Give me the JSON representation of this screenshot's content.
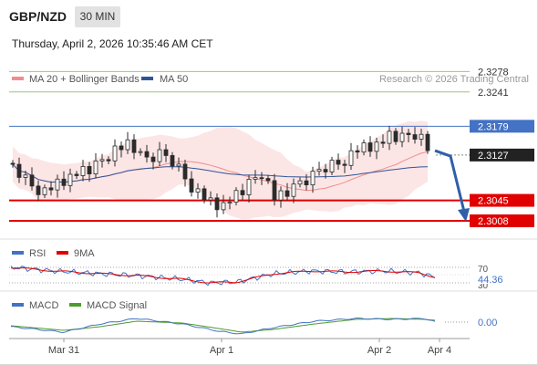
{
  "header": {
    "symbol": "GBP/NZD",
    "timeframe": "30 MIN",
    "datetime": "Thursday, April 2, 2026 10:35:46 AM CET"
  },
  "legend": {
    "ma20": "MA 20 + Bollinger Bands",
    "ma50": "MA 50",
    "credit": "Research © 2026 Trading Central",
    "rsi": "RSI",
    "rsi_ma": "9MA",
    "macd": "MACD",
    "macd_signal": "MACD Signal"
  },
  "colors": {
    "bull": "#d9d9d9",
    "bear": "#d9d9d9",
    "outline": "#2b2b2b",
    "ma20": "#f28c8c",
    "ma50": "#2f5597",
    "band": "#fbdcdc",
    "resistance": "#4472c4",
    "target": "#9bc57d",
    "support": "#e00000",
    "arrow": "#2f5fa8",
    "rsi": "#4472c4",
    "rsi_ma": "#e00000",
    "macd": "#4472c4",
    "macd_signal": "#4c9c2e"
  },
  "chart_data": {
    "type": "candlestick",
    "x_labels": [
      "Mar 31",
      "Apr 1",
      "Apr 2",
      "Apr 4"
    ],
    "ylim": [
      2.2975,
      2.3305
    ],
    "levels": [
      {
        "name": "target-2",
        "value": 2.3278,
        "label": "2.3278",
        "style": "target"
      },
      {
        "name": "target-1",
        "value": 2.3241,
        "label": "2.3241",
        "style": "target"
      },
      {
        "name": "pivot",
        "value": 2.3179,
        "label": "2.3179",
        "style": "pivot"
      },
      {
        "name": "current",
        "value": 2.3127,
        "label": "2.3127",
        "style": "current"
      },
      {
        "name": "support-1",
        "value": 2.3045,
        "label": "2.3045",
        "style": "support"
      },
      {
        "name": "support-2",
        "value": 2.3008,
        "label": "2.3008",
        "style": "support"
      }
    ],
    "rsi": {
      "levels": [
        "70",
        "30"
      ],
      "value": "44.36"
    },
    "macd": {
      "value": "0.00"
    }
  }
}
